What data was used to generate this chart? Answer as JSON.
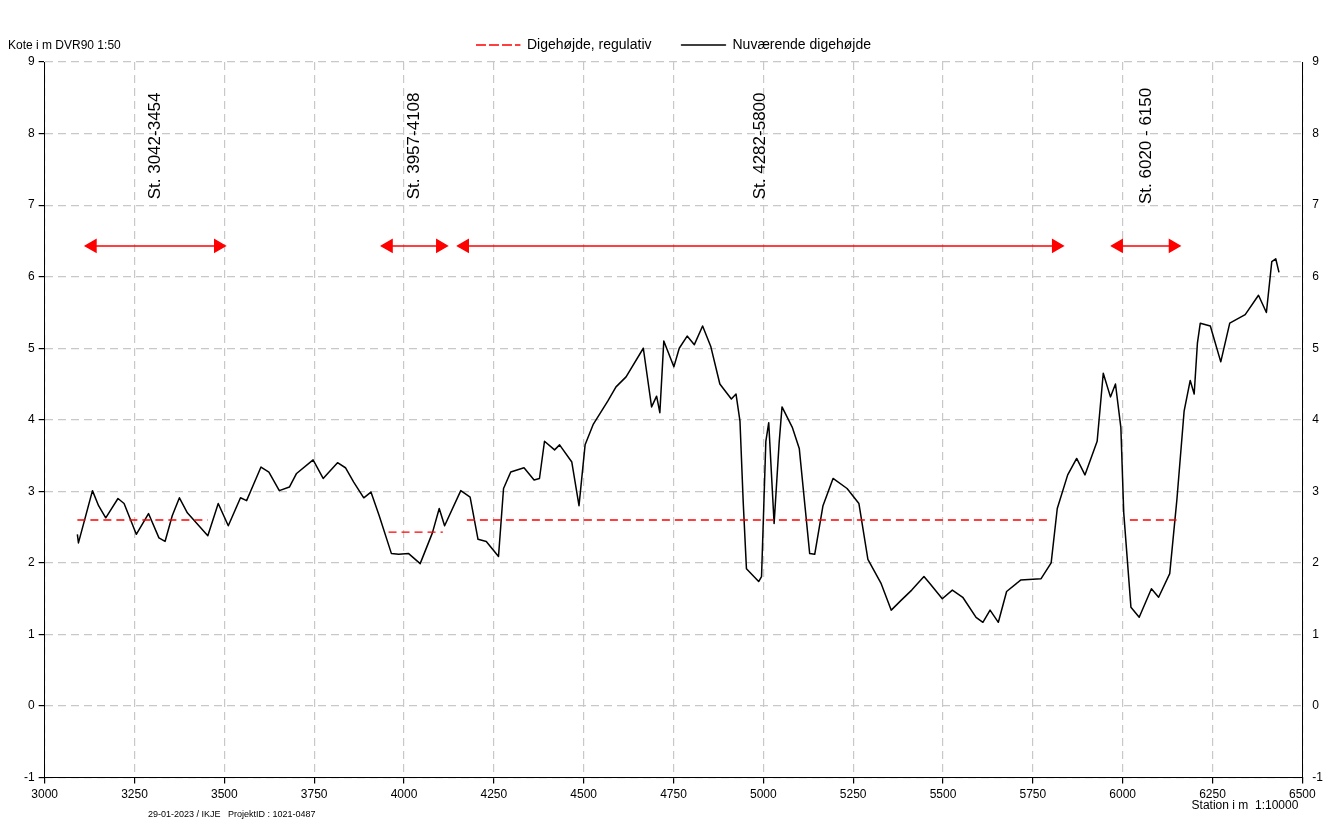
{
  "chart_data": {
    "type": "line",
    "xlabel": "Station i m  1:10000",
    "ylabel": "Kote i m DVR90 1:50",
    "xlim": [
      3000,
      6500
    ],
    "xticks": [
      3000,
      3250,
      3500,
      3750,
      4000,
      4250,
      4500,
      4750,
      5000,
      5250,
      5500,
      5750,
      6000,
      6250,
      6500
    ],
    "ylim": [
      -1,
      9
    ],
    "yticks": [
      -1,
      0,
      1,
      2,
      3,
      4,
      5,
      6,
      7,
      8,
      9
    ],
    "y2lim": [
      -1,
      9
    ],
    "y2ticks": [
      -1,
      0,
      1,
      2,
      3,
      4,
      5,
      6,
      7,
      8,
      9
    ],
    "grid": true,
    "legend": "top",
    "marker": "none",
    "series": [
      {
        "name": "Digehøjde, regulativ",
        "color": "#ff0000",
        "line_style": "dashed",
        "x": [
          3091,
          3454,
          3700,
          3957,
          4108,
          4140,
          4175,
          5800,
          5900,
          6020,
          6150
        ],
        "values": [
          2.6,
          2.6,
          null,
          2.43,
          2.43,
          null,
          2.6,
          2.6,
          null,
          2.6,
          2.6
        ]
      },
      {
        "name": "Nuværende digehøjde",
        "color": "#000000",
        "line_style": "solid",
        "x": [
          3091,
          3094,
          3133,
          3150,
          3170,
          3204,
          3221,
          3255,
          3289,
          3318,
          3335,
          3355,
          3375,
          3397,
          3454,
          3483,
          3511,
          3545,
          3562,
          3602,
          3624,
          3653,
          3681,
          3701,
          3747,
          3775,
          3815,
          3837,
          3860,
          3888,
          3908,
          3931,
          3965,
          3985,
          4013,
          4045,
          4079,
          4098,
          4113,
          4158,
          4184,
          4206,
          4229,
          4263,
          4277,
          4297,
          4334,
          4362,
          4377,
          4391,
          4419,
          4433,
          4467,
          4487,
          4504,
          4527,
          4567,
          4590,
          4618,
          4666,
          4689,
          4703,
          4712,
          4723,
          4751,
          4766,
          4788,
          4808,
          4831,
          4854,
          4879,
          4911,
          4924,
          4935,
          4944,
          4953,
          4987,
          4995,
          5007,
          5015,
          5030,
          5044,
          5052,
          5081,
          5100,
          5129,
          5143,
          5166,
          5194,
          5233,
          5266,
          5291,
          5328,
          5356,
          5384,
          5413,
          5447,
          5464,
          5498,
          5526,
          5555,
          5592,
          5611,
          5631,
          5654,
          5677,
          5716,
          5773,
          5801,
          5818,
          5847,
          5872,
          5895,
          5929,
          5946,
          5966,
          5980,
          5995,
          6003,
          6023,
          6046,
          6080,
          6100,
          6131,
          6151,
          6171,
          6188,
          6199,
          6208,
          6216,
          6244,
          6273,
          6298,
          6341,
          6378,
          6400,
          6415,
          6426,
          6435
        ],
        "values": [
          2.4,
          2.28,
          3.01,
          2.8,
          2.63,
          2.9,
          2.83,
          2.4,
          2.69,
          2.35,
          2.3,
          2.66,
          2.91,
          2.7,
          2.38,
          2.83,
          2.52,
          2.91,
          2.87,
          3.34,
          3.27,
          3.01,
          3.06,
          3.25,
          3.44,
          3.18,
          3.4,
          3.33,
          3.13,
          2.91,
          2.99,
          2.66,
          2.13,
          2.12,
          2.13,
          1.99,
          2.42,
          2.76,
          2.52,
          3.01,
          2.92,
          2.33,
          2.3,
          2.09,
          3.04,
          3.27,
          3.33,
          3.16,
          3.18,
          3.7,
          3.58,
          3.65,
          3.41,
          2.8,
          3.65,
          3.94,
          4.26,
          4.46,
          4.6,
          5.0,
          4.18,
          4.33,
          4.1,
          5.1,
          4.74,
          5.0,
          5.17,
          5.05,
          5.31,
          5.02,
          4.5,
          4.29,
          4.36,
          3.98,
          2.85,
          1.92,
          1.74,
          1.81,
          3.7,
          3.96,
          2.55,
          3.68,
          4.18,
          3.89,
          3.6,
          2.13,
          2.12,
          2.8,
          3.18,
          3.04,
          2.83,
          2.05,
          1.71,
          1.34,
          1.48,
          1.62,
          1.81,
          1.71,
          1.5,
          1.62,
          1.52,
          1.24,
          1.17,
          1.34,
          1.17,
          1.6,
          1.76,
          1.78,
          2.0,
          2.76,
          3.23,
          3.46,
          3.23,
          3.7,
          4.65,
          4.32,
          4.5,
          3.89,
          2.7,
          1.38,
          1.24,
          1.64,
          1.52,
          1.85,
          2.89,
          4.12,
          4.55,
          4.36,
          5.07,
          5.35,
          5.31,
          4.81,
          5.35,
          5.47,
          5.74,
          5.5,
          6.21,
          6.25,
          6.06
        ]
      },
      {
        "type": "line",
        "color": "#ff0000",
        "marker": "triangle",
        "x": [
          3133,
          3483
        ],
        "values": [
          6.43,
          6.43
        ]
      },
      {
        "type": "line",
        "color": "#ff0000",
        "marker": "triangle",
        "x": [
          3957,
          4101
        ],
        "values": [
          6.43,
          6.43
        ]
      },
      {
        "type": "line",
        "color": "#ff0000",
        "marker": "triangle",
        "x": [
          4169,
          5815
        ],
        "values": [
          6.43,
          6.43
        ]
      },
      {
        "type": "line",
        "color": "#ff0000",
        "marker": "triangle",
        "x": [
          5989,
          6140
        ],
        "values": [
          6.43,
          6.43
        ]
      }
    ],
    "annotations": [
      "St. 3042-3454",
      "St. 3957-4108",
      "St. 4282-5800",
      "St. 6020 - 6150",
      "29-01-2023 / IKJE   ProjektID : 1021-0487"
    ]
  }
}
